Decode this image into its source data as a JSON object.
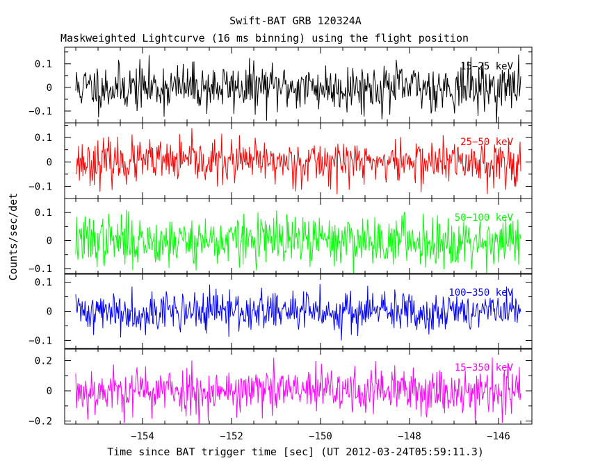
{
  "chart_data": {
    "type": "line",
    "title": "Swift-BAT GRB 120324A",
    "subtitle": "Maskweighted Lightcurve (16 ms binning) using the flight position",
    "xlabel": "Time since BAT trigger time [sec] (UT 2012-03-24T05:59:11.3)",
    "ylabel": "Counts/sec/det",
    "xlim": [
      -155.75,
      -145.25
    ],
    "data_x_range": [
      -155.5,
      -145.5
    ],
    "bin_width_sec": 0.016,
    "x_ticks": [
      -154,
      -152,
      -150,
      -148,
      -146
    ],
    "x_tick_labels": [
      "−154",
      "−152",
      "−150",
      "−148",
      "−146"
    ],
    "panels": [
      {
        "label": "15−25 keV",
        "color": "#000000",
        "ylim": [
          -0.15,
          0.17
        ],
        "y_ticks": [
          -0.1,
          0,
          0.1
        ],
        "y_tick_labels": [
          "−0.1",
          "0",
          "0.1"
        ],
        "noise_sigma": 0.05,
        "seed": 11
      },
      {
        "label": "25−50 keV",
        "color": "#ff0000",
        "ylim": [
          -0.15,
          0.16
        ],
        "y_ticks": [
          -0.1,
          0,
          0.1
        ],
        "y_tick_labels": [
          "−0.1",
          "0",
          "0.1"
        ],
        "noise_sigma": 0.045,
        "seed": 23
      },
      {
        "label": "50−100 keV",
        "color": "#00ff00",
        "ylim": [
          -0.12,
          0.15
        ],
        "y_ticks": [
          -0.1,
          0,
          0.1
        ],
        "y_tick_labels": [
          "−0.1",
          "0",
          "0.1"
        ],
        "noise_sigma": 0.045,
        "seed": 37
      },
      {
        "label": "100−350 keV",
        "color": "#0000ff",
        "ylim": [
          -0.13,
          0.13
        ],
        "y_ticks": [
          -0.1,
          0,
          0.1
        ],
        "y_tick_labels": [
          "−0.1",
          "0",
          "0.1"
        ],
        "noise_sigma": 0.035,
        "seed": 41
      },
      {
        "label": "15−350 keV",
        "color": "#ff00ff",
        "ylim": [
          -0.22,
          0.28
        ],
        "y_ticks": [
          -0.2,
          0,
          0.2
        ],
        "y_tick_labels": [
          "−0.2",
          "0",
          "0.2"
        ],
        "noise_sigma": 0.08,
        "seed": 53
      }
    ]
  }
}
